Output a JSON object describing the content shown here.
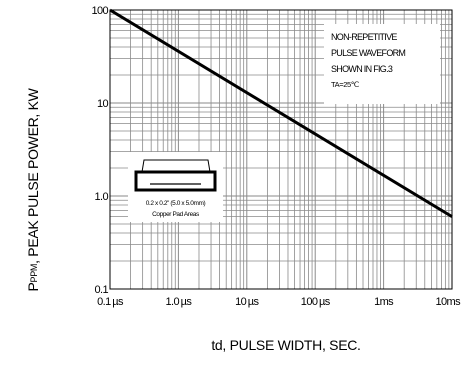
{
  "chart_data": {
    "type": "line",
    "title": "",
    "xscale": "log",
    "yscale": "log",
    "xlim_seconds": [
      1e-07,
      0.01
    ],
    "ylim": [
      0.1,
      100
    ],
    "grid": true,
    "x_ticks": [
      {
        "value_s": 1e-07,
        "label": "0.1 µs"
      },
      {
        "value_s": 1e-06,
        "label": "1.0 µs"
      },
      {
        "value_s": 1e-05,
        "label": "10 µs"
      },
      {
        "value_s": 0.0001,
        "label": "100 µs"
      },
      {
        "value_s": 0.001,
        "label": "1ms"
      },
      {
        "value_s": 0.01,
        "label": "10ms"
      }
    ],
    "y_ticks": [
      {
        "value": 100,
        "label": "100"
      },
      {
        "value": 10,
        "label": "10"
      },
      {
        "value": 1,
        "label": "1.0"
      },
      {
        "value": 0.1,
        "label": "0.1"
      }
    ],
    "series": [
      {
        "x_seconds": [
          1e-07,
          0.01
        ],
        "values": [
          100,
          0.6
        ]
      }
    ],
    "xlabel": "td, PULSE WIDTH, SEC.",
    "ylabel_symbol": "P",
    "ylabel_subscript": "PPM",
    "ylabel_rest": ", PEAK PULSE POWER, KW",
    "annotation": {
      "lines": [
        "NON-REPETITIVE",
        "PULSE WAVEFORM",
        "SHOWN IN FIG.3"
      ],
      "condition": "TA=25℃"
    },
    "inset": {
      "label_line1": "0.2 x 0.2\" (5.0 x 5.0mm)",
      "label_line2": "Copper Pad Areas"
    }
  },
  "colors": {
    "grid": "#8a8a8a",
    "curve": "#000000",
    "frame": "#000000"
  }
}
